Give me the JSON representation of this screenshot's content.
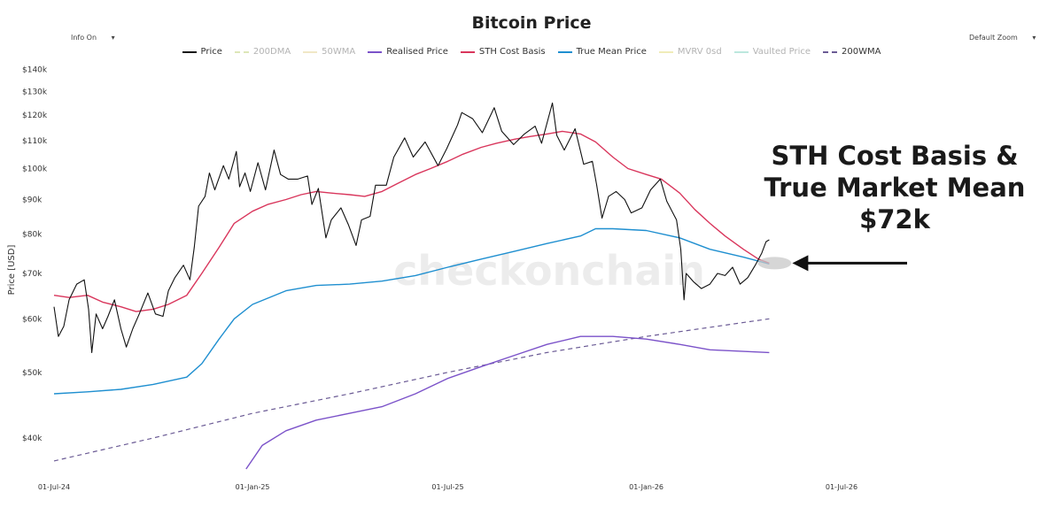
{
  "ui": {
    "info_toggle": "Info On",
    "zoom_select": "Default Zoom",
    "dropdown_glyph": "▾"
  },
  "chart_data": {
    "type": "line",
    "title": "Bitcoin Price",
    "ylabel": "Price [USD]",
    "xlabel": "",
    "y_scale": "log",
    "ylim": [
      36000,
      142000
    ],
    "xlim": [
      "2024-07-01",
      "2026-07-01"
    ],
    "x_ticks": [
      "01-Jul-24",
      "01-Jan-25",
      "01-Jul-25",
      "01-Jan-26",
      "01-Jul-26"
    ],
    "y_ticks": [
      {
        "value": 40000,
        "label": "$40k"
      },
      {
        "value": 50000,
        "label": "$50k"
      },
      {
        "value": 60000,
        "label": "$60k"
      },
      {
        "value": 70000,
        "label": "$70k"
      },
      {
        "value": 80000,
        "label": "$80k"
      },
      {
        "value": 90000,
        "label": "$90k"
      },
      {
        "value": 100000,
        "label": "$100k"
      },
      {
        "value": 110000,
        "label": "$110k"
      },
      {
        "value": 120000,
        "label": "$120k"
      },
      {
        "value": 130000,
        "label": "$130k"
      },
      {
        "value": 140000,
        "label": "$140k"
      }
    ],
    "grid": false,
    "legend_position": "top-center",
    "watermark": "checkonchain",
    "legend": [
      {
        "name": "Price",
        "color": "#111111",
        "style": "solid",
        "active": true
      },
      {
        "name": "200DMA",
        "color": "#c8d88a",
        "style": "dashed",
        "active": false
      },
      {
        "name": "50WMA",
        "color": "#e8d9a0",
        "style": "solid",
        "active": false
      },
      {
        "name": "Realised Price",
        "color": "#7b52c9",
        "style": "solid",
        "active": true
      },
      {
        "name": "STH Cost Basis",
        "color": "#d9365c",
        "style": "solid",
        "active": true
      },
      {
        "name": "True Mean Price",
        "color": "#1f8fd0",
        "style": "solid",
        "active": true
      },
      {
        "name": "MVRV 0sd",
        "color": "#e6e08a",
        "style": "solid",
        "active": false
      },
      {
        "name": "Vaulted Price",
        "color": "#8fd9c8",
        "style": "solid",
        "active": false
      },
      {
        "name": "200WMA",
        "color": "#6b5b95",
        "style": "dashed",
        "active": true
      }
    ],
    "series": [
      {
        "name": "Price",
        "color": "#111111",
        "width": 1.1,
        "dash": "",
        "points": [
          [
            "2024-07-01",
            62500
          ],
          [
            "2024-07-05",
            56500
          ],
          [
            "2024-07-10",
            58500
          ],
          [
            "2024-07-15",
            64000
          ],
          [
            "2024-07-22",
            67500
          ],
          [
            "2024-07-29",
            68500
          ],
          [
            "2024-08-02",
            62000
          ],
          [
            "2024-08-05",
            53500
          ],
          [
            "2024-08-09",
            61000
          ],
          [
            "2024-08-15",
            58000
          ],
          [
            "2024-08-20",
            60500
          ],
          [
            "2024-08-26",
            64000
          ],
          [
            "2024-09-01",
            58000
          ],
          [
            "2024-09-06",
            54500
          ],
          [
            "2024-09-12",
            58000
          ],
          [
            "2024-09-18",
            61000
          ],
          [
            "2024-09-26",
            65500
          ],
          [
            "2024-10-03",
            61000
          ],
          [
            "2024-10-10",
            60500
          ],
          [
            "2024-10-15",
            66000
          ],
          [
            "2024-10-21",
            69000
          ],
          [
            "2024-10-29",
            72000
          ],
          [
            "2024-11-04",
            68500
          ],
          [
            "2024-11-08",
            76500
          ],
          [
            "2024-11-12",
            88000
          ],
          [
            "2024-11-18",
            91000
          ],
          [
            "2024-11-22",
            98500
          ],
          [
            "2024-11-27",
            93000
          ],
          [
            "2024-12-05",
            101000
          ],
          [
            "2024-12-10",
            96500
          ],
          [
            "2024-12-17",
            106000
          ],
          [
            "2024-12-20",
            94000
          ],
          [
            "2024-12-25",
            98500
          ],
          [
            "2024-12-30",
            92500
          ],
          [
            "2025-01-06",
            102000
          ],
          [
            "2025-01-13",
            93000
          ],
          [
            "2025-01-21",
            106500
          ],
          [
            "2025-01-27",
            98000
          ],
          [
            "2025-02-03",
            96500
          ],
          [
            "2025-02-12",
            96500
          ],
          [
            "2025-02-21",
            97500
          ],
          [
            "2025-02-25",
            88500
          ],
          [
            "2025-03-03",
            93500
          ],
          [
            "2025-03-10",
            79000
          ],
          [
            "2025-03-15",
            84000
          ],
          [
            "2025-03-24",
            87500
          ],
          [
            "2025-03-31",
            82500
          ],
          [
            "2025-04-07",
            77000
          ],
          [
            "2025-04-12",
            84000
          ],
          [
            "2025-04-20",
            85000
          ],
          [
            "2025-04-25",
            94500
          ],
          [
            "2025-05-05",
            94500
          ],
          [
            "2025-05-12",
            104000
          ],
          [
            "2025-05-22",
            111000
          ],
          [
            "2025-05-30",
            104000
          ],
          [
            "2025-06-10",
            109500
          ],
          [
            "2025-06-22",
            101000
          ],
          [
            "2025-06-30",
            107000
          ],
          [
            "2025-07-10",
            116000
          ],
          [
            "2025-07-14",
            121000
          ],
          [
            "2025-07-24",
            118500
          ],
          [
            "2025-08-02",
            113000
          ],
          [
            "2025-08-13",
            123000
          ],
          [
            "2025-08-20",
            113500
          ],
          [
            "2025-08-31",
            108500
          ],
          [
            "2025-09-10",
            112500
          ],
          [
            "2025-09-20",
            115500
          ],
          [
            "2025-09-26",
            109000
          ],
          [
            "2025-10-06",
            125000
          ],
          [
            "2025-10-10",
            112000
          ],
          [
            "2025-10-17",
            106500
          ],
          [
            "2025-10-27",
            114500
          ],
          [
            "2025-11-04",
            101500
          ],
          [
            "2025-11-12",
            102500
          ],
          [
            "2025-11-16",
            94500
          ],
          [
            "2025-11-21",
            84500
          ],
          [
            "2025-11-27",
            91000
          ],
          [
            "2025-12-04",
            92500
          ],
          [
            "2025-12-12",
            90000
          ],
          [
            "2025-12-18",
            86000
          ],
          [
            "2025-12-28",
            87500
          ],
          [
            "2026-01-05",
            93000
          ],
          [
            "2026-01-14",
            96500
          ],
          [
            "2026-01-20",
            89500
          ],
          [
            "2026-01-29",
            84000
          ],
          [
            "2026-02-02",
            76000
          ],
          [
            "2026-02-05",
            64000
          ],
          [
            "2026-02-07",
            70000
          ],
          [
            "2026-02-14",
            68000
          ],
          [
            "2026-02-21",
            66500
          ],
          [
            "2026-03-01",
            67500
          ],
          [
            "2026-03-08",
            70000
          ],
          [
            "2026-03-15",
            69500
          ],
          [
            "2026-03-22",
            71500
          ],
          [
            "2026-03-29",
            67500
          ],
          [
            "2026-04-05",
            69000
          ],
          [
            "2026-04-12",
            72000
          ],
          [
            "2026-04-18",
            75000
          ],
          [
            "2026-04-22",
            78000
          ],
          [
            "2026-04-25",
            78500
          ]
        ]
      },
      {
        "name": "STH Cost Basis",
        "color": "#d9365c",
        "width": 1.4,
        "dash": "",
        "points": [
          [
            "2024-07-01",
            65000
          ],
          [
            "2024-07-15",
            64500
          ],
          [
            "2024-08-01",
            65000
          ],
          [
            "2024-08-15",
            63500
          ],
          [
            "2024-09-01",
            62500
          ],
          [
            "2024-09-15",
            61500
          ],
          [
            "2024-10-01",
            62000
          ],
          [
            "2024-10-15",
            63000
          ],
          [
            "2024-11-01",
            65000
          ],
          [
            "2024-11-15",
            70000
          ],
          [
            "2024-12-01",
            76500
          ],
          [
            "2024-12-15",
            83000
          ],
          [
            "2025-01-01",
            86500
          ],
          [
            "2025-01-15",
            88500
          ],
          [
            "2025-02-01",
            90000
          ],
          [
            "2025-02-15",
            91500
          ],
          [
            "2025-03-01",
            92500
          ],
          [
            "2025-03-15",
            92000
          ],
          [
            "2025-04-01",
            91500
          ],
          [
            "2025-04-15",
            91000
          ],
          [
            "2025-05-01",
            92500
          ],
          [
            "2025-05-15",
            95000
          ],
          [
            "2025-06-01",
            98000
          ],
          [
            "2025-06-15",
            100000
          ],
          [
            "2025-07-01",
            102500
          ],
          [
            "2025-07-15",
            105000
          ],
          [
            "2025-08-01",
            107500
          ],
          [
            "2025-08-15",
            109000
          ],
          [
            "2025-09-01",
            110500
          ],
          [
            "2025-09-15",
            111500
          ],
          [
            "2025-10-01",
            112500
          ],
          [
            "2025-10-15",
            113500
          ],
          [
            "2025-11-01",
            112500
          ],
          [
            "2025-11-15",
            109500
          ],
          [
            "2025-12-01",
            104000
          ],
          [
            "2025-12-15",
            100000
          ],
          [
            "2026-01-01",
            98000
          ],
          [
            "2026-01-15",
            96500
          ],
          [
            "2026-02-01",
            92000
          ],
          [
            "2026-02-15",
            87000
          ],
          [
            "2026-03-01",
            83000
          ],
          [
            "2026-03-15",
            79500
          ],
          [
            "2026-04-01",
            76000
          ],
          [
            "2026-04-15",
            73500
          ],
          [
            "2026-04-25",
            72500
          ]
        ]
      },
      {
        "name": "True Mean Price",
        "color": "#1f8fd0",
        "width": 1.4,
        "dash": "",
        "points": [
          [
            "2024-07-01",
            46500
          ],
          [
            "2024-08-01",
            46800
          ],
          [
            "2024-09-01",
            47200
          ],
          [
            "2024-10-01",
            48000
          ],
          [
            "2024-11-01",
            49200
          ],
          [
            "2024-11-15",
            51500
          ],
          [
            "2024-12-01",
            56000
          ],
          [
            "2024-12-15",
            60000
          ],
          [
            "2025-01-01",
            63000
          ],
          [
            "2025-02-01",
            66000
          ],
          [
            "2025-03-01",
            67200
          ],
          [
            "2025-04-01",
            67500
          ],
          [
            "2025-05-01",
            68200
          ],
          [
            "2025-06-01",
            69500
          ],
          [
            "2025-07-01",
            71500
          ],
          [
            "2025-08-01",
            73500
          ],
          [
            "2025-09-01",
            75500
          ],
          [
            "2025-10-01",
            77500
          ],
          [
            "2025-11-01",
            79500
          ],
          [
            "2025-11-15",
            81500
          ],
          [
            "2025-12-01",
            81500
          ],
          [
            "2026-01-01",
            81000
          ],
          [
            "2026-02-01",
            79000
          ],
          [
            "2026-03-01",
            76000
          ],
          [
            "2026-04-01",
            74000
          ],
          [
            "2026-04-25",
            72300
          ]
        ]
      },
      {
        "name": "Realised Price",
        "color": "#7b52c9",
        "width": 1.4,
        "dash": "",
        "points": [
          [
            "2024-12-26",
            36000
          ],
          [
            "2025-01-10",
            39000
          ],
          [
            "2025-02-01",
            41000
          ],
          [
            "2025-03-01",
            42500
          ],
          [
            "2025-04-01",
            43500
          ],
          [
            "2025-05-01",
            44500
          ],
          [
            "2025-06-01",
            46500
          ],
          [
            "2025-07-01",
            49000
          ],
          [
            "2025-08-01",
            51000
          ],
          [
            "2025-09-01",
            53000
          ],
          [
            "2025-10-01",
            55000
          ],
          [
            "2025-11-01",
            56500
          ],
          [
            "2025-12-01",
            56500
          ],
          [
            "2026-01-01",
            56000
          ],
          [
            "2026-02-01",
            55000
          ],
          [
            "2026-03-01",
            54000
          ],
          [
            "2026-04-25",
            53500
          ]
        ]
      },
      {
        "name": "200WMA",
        "color": "#6b5b95",
        "width": 1.2,
        "dash": "5,4",
        "points": [
          [
            "2024-07-01",
            37000
          ],
          [
            "2024-10-01",
            40000
          ],
          [
            "2025-01-01",
            43500
          ],
          [
            "2025-04-01",
            46500
          ],
          [
            "2025-07-01",
            50000
          ],
          [
            "2025-10-01",
            53500
          ],
          [
            "2026-01-01",
            56500
          ],
          [
            "2026-04-25",
            60000
          ]
        ]
      }
    ],
    "annotations": [
      {
        "lines": [
          "STH Cost Basis &",
          "True Market Mean",
          "$72k"
        ],
        "target_date": "2026-04-25",
        "target_value": 72500
      }
    ]
  }
}
